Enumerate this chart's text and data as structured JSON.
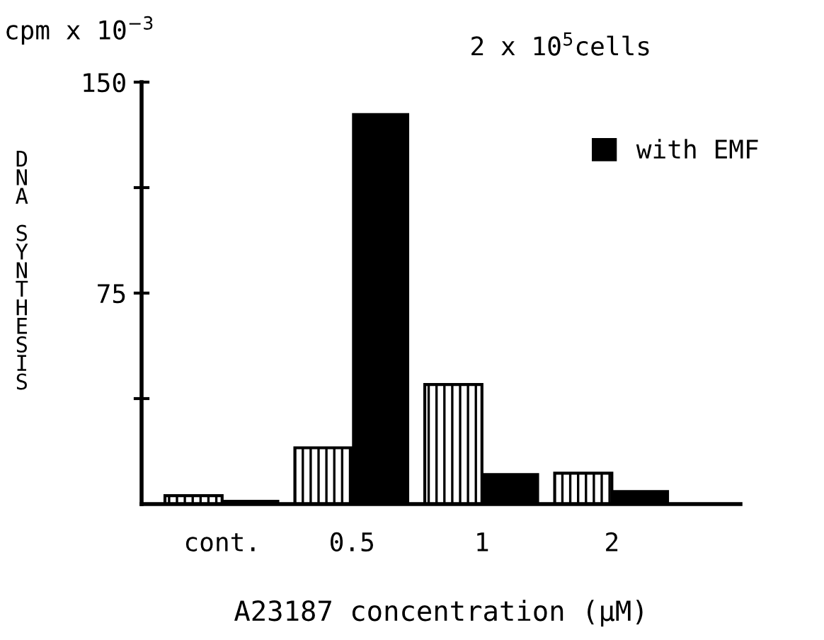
{
  "chart_data": {
    "type": "bar",
    "ylabel": "DNA SYNTHESIS",
    "xlabel": "A23187 concentration (μM)",
    "annotations": [
      "cpm x 10$^{−3}$",
      "2 x 10$^{5}$cells"
    ],
    "categories": [
      "cont.",
      "0.5",
      "1",
      "2"
    ],
    "series": [
      {
        "color": "#000000",
        "values": [
          3,
          20,
          42.5,
          11
        ]
      },
      {
        "name": "with EMF",
        "color": "#000000",
        "values": [
          1.5,
          139,
          11,
          5
        ]
      }
    ],
    "ylim": [
      0,
      150
    ],
    "yticks": [
      {
        "value": 37.5,
        "label": null
      },
      75,
      {
        "value": 112.5,
        "label": null
      },
      150
    ],
    "legend": "top right",
    "grid": false
  }
}
